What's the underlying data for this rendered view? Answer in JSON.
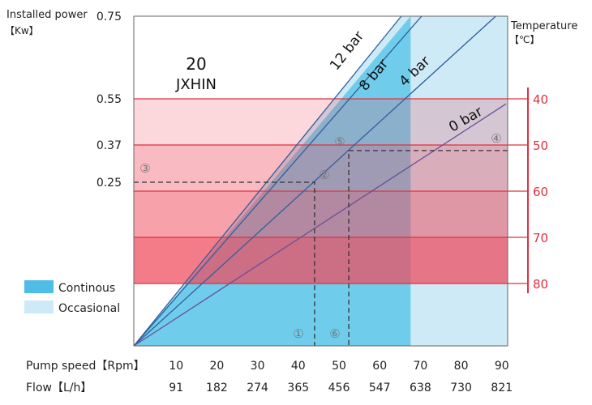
{
  "chart_data": {
    "type": "line",
    "model": "20",
    "brand": "JXHIN",
    "ylabel": "Installed power",
    "yunit": "【Kw】",
    "y2label": "Temperature",
    "y2unit": "【℃】",
    "xlabel": "Pump speed【Rpm】",
    "x2label": "Flow【L/h】",
    "x_ticks": [
      10,
      20,
      30,
      40,
      50,
      60,
      70,
      80,
      90
    ],
    "flow_ticks": [
      91,
      182,
      274,
      365,
      456,
      547,
      638,
      730,
      821
    ],
    "xlim": [
      0,
      92
    ],
    "power_ticks": [
      0.75,
      0.55,
      0.37,
      0.25
    ],
    "temperature_ticks": [
      40,
      50,
      60,
      70,
      80
    ],
    "temperature_bands": [
      {
        "from": 40,
        "to": 50,
        "color": "#f04a5c",
        "opacity": 0.22
      },
      {
        "from": 50,
        "to": 60,
        "color": "#f04a5c",
        "opacity": 0.38
      },
      {
        "from": 60,
        "to": 70,
        "color": "#f04a5c",
        "opacity": 0.52
      },
      {
        "from": 70,
        "to": 80,
        "color": "#f04a5c",
        "opacity": 0.72
      }
    ],
    "series": [
      {
        "name": "12 bar",
        "points": [
          [
            0,
            0
          ],
          [
            65.7,
            0.75
          ]
        ]
      },
      {
        "name": "8 bar",
        "points": [
          [
            0,
            0
          ],
          [
            70.7,
            0.75
          ]
        ]
      },
      {
        "name": "4 bar",
        "points": [
          [
            0,
            0
          ],
          [
            88.9,
            0.75
          ]
        ]
      },
      {
        "name": "0 bar",
        "points": [
          [
            0,
            0
          ],
          [
            91.4,
            0.53
          ]
        ]
      }
    ],
    "regions": [
      {
        "name": "Continous",
        "max_speed": 68,
        "color": "#6fcdeb"
      },
      {
        "name": "Occasional",
        "max_speed": 92,
        "color": "#cdeaf6"
      }
    ],
    "annotations": [
      {
        "label": "①",
        "speed": 44.4,
        "power": 0.25
      },
      {
        "label": "②",
        "speed": 46.5,
        "power": 0.27
      },
      {
        "label": "③",
        "speed": 2.8,
        "power": 0.29
      },
      {
        "label": "④",
        "speed": 89,
        "power": 0.37
      },
      {
        "label": "⑤",
        "speed": 50.6,
        "power": 0.37
      },
      {
        "label": "⑥",
        "speed": 52.8,
        "power": 0.352
      }
    ],
    "line_color": "#2f5f9e",
    "axis_color": "#e0303e",
    "grid": false,
    "legend": "left"
  }
}
